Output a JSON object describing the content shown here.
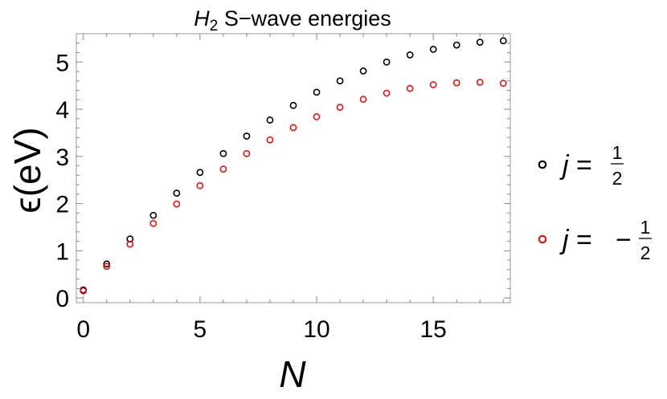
{
  "chart_data": {
    "type": "scatter",
    "title": "H2 S−wave energies",
    "title_parts": {
      "symbol": "H",
      "subscript": "2",
      "rest": " S−wave energies"
    },
    "xlabel": "N",
    "ylabel": "ϵ(eV)",
    "xlim": [
      -0.3,
      18.3
    ],
    "ylim": [
      -0.1,
      5.6
    ],
    "xticks": [
      0,
      5,
      10,
      15
    ],
    "yticks": [
      0,
      1,
      2,
      3,
      4,
      5
    ],
    "grid": false,
    "legend_position": "right",
    "marker": "open-circle",
    "series": [
      {
        "key": "j_plus",
        "legend_lhs": "j =",
        "legend_sign": "",
        "legend_num": "1",
        "legend_den": "2",
        "color": "#000000",
        "x": [
          0,
          1,
          2,
          3,
          4,
          5,
          6,
          7,
          8,
          9,
          10,
          11,
          12,
          13,
          14,
          15,
          16,
          17,
          18
        ],
        "y": [
          0.17,
          0.72,
          1.25,
          1.75,
          2.22,
          2.66,
          3.06,
          3.43,
          3.77,
          4.08,
          4.36,
          4.6,
          4.81,
          5.0,
          5.15,
          5.27,
          5.36,
          5.42,
          5.45
        ]
      },
      {
        "key": "j_minus",
        "legend_lhs": "j =",
        "legend_sign": "−",
        "legend_num": "1",
        "legend_den": "2",
        "color": "#ee1111",
        "x": [
          0,
          1,
          2,
          3,
          4,
          5,
          6,
          7,
          8,
          9,
          10,
          11,
          12,
          13,
          14,
          15,
          16,
          17,
          18
        ],
        "y": [
          0.15,
          0.67,
          1.14,
          1.58,
          1.99,
          2.38,
          2.73,
          3.06,
          3.35,
          3.61,
          3.84,
          4.04,
          4.21,
          4.34,
          4.44,
          4.52,
          4.56,
          4.57,
          4.55
        ]
      }
    ]
  }
}
